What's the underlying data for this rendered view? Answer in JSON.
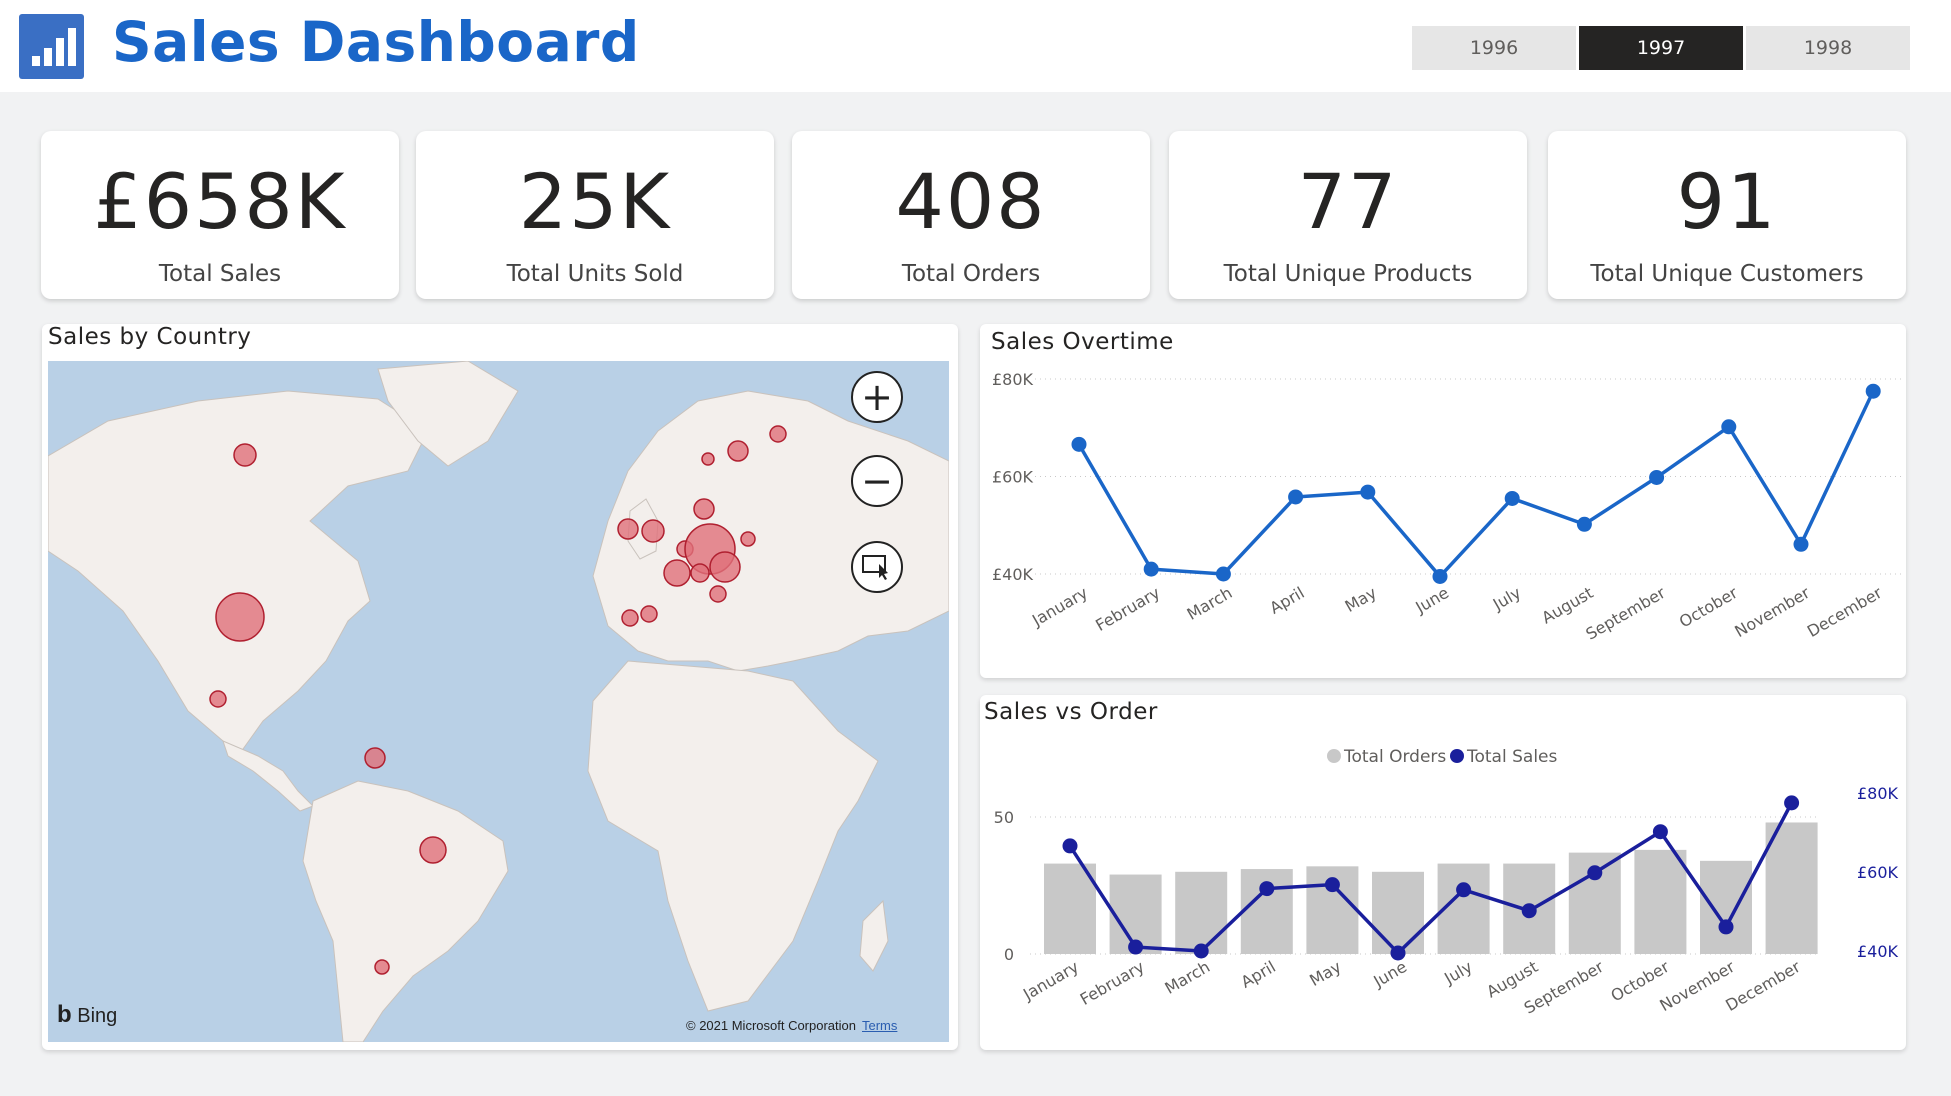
{
  "app": {
    "title": "Sales Dashboard",
    "icon": "bar-chart-icon",
    "accent": "#1a66c8"
  },
  "years": [
    {
      "label": "1996",
      "active": false
    },
    {
      "label": "1997",
      "active": true
    },
    {
      "label": "1998",
      "active": false
    }
  ],
  "kpis": [
    {
      "value": "£658K",
      "label": "Total Sales"
    },
    {
      "value": "25K",
      "label": "Total Units Sold"
    },
    {
      "value": "408",
      "label": "Total Orders"
    },
    {
      "value": "77",
      "label": "Total Unique Products"
    },
    {
      "value": "91",
      "label": "Total Unique Customers"
    }
  ],
  "map": {
    "title": "Sales by Country",
    "brand": "Bing",
    "copyright": "© 2021 Microsoft Corporation",
    "terms": "Terms",
    "controls": [
      "zoom-in",
      "zoom-out",
      "select"
    ]
  },
  "chart_data": [
    {
      "type": "line",
      "title": "Sales Overtime",
      "categories": [
        "January",
        "February",
        "March",
        "April",
        "May",
        "June",
        "July",
        "August",
        "September",
        "October",
        "November",
        "December"
      ],
      "y_ticks": [
        "£40K",
        "£60K",
        "£80K"
      ],
      "ylim": [
        40000,
        80000
      ],
      "series": [
        {
          "values": [
            66600,
            41000,
            40000,
            55800,
            56800,
            39500,
            55500,
            50200,
            59800,
            70200,
            46100,
            77500
          ],
          "color": "#1a66c8"
        }
      ],
      "grid": true
    },
    {
      "type": "bar",
      "title": "Sales vs Order",
      "categories": [
        "January",
        "February",
        "March",
        "April",
        "May",
        "June",
        "July",
        "August",
        "September",
        "October",
        "November",
        "December"
      ],
      "legend": [
        "Total Orders",
        "Total Sales"
      ],
      "legend_position": "top-center",
      "y_ticks": [
        "0",
        "50"
      ],
      "y2_ticks": [
        "£40K",
        "£60K",
        "£80K"
      ],
      "ylim": [
        0,
        70
      ],
      "y2lim": [
        40000,
        80000
      ],
      "series": [
        {
          "name": "Total Orders",
          "type": "bar",
          "color": "#c8c8c8",
          "values": [
            33,
            29,
            30,
            31,
            32,
            30,
            33,
            33,
            37,
            38,
            34,
            48
          ]
        },
        {
          "name": "Total Sales",
          "type": "line",
          "color": "#1a1f9c",
          "values": [
            66600,
            41000,
            40000,
            55800,
            56800,
            39500,
            55500,
            50200,
            59800,
            70200,
            46100,
            77500
          ]
        }
      ]
    }
  ]
}
